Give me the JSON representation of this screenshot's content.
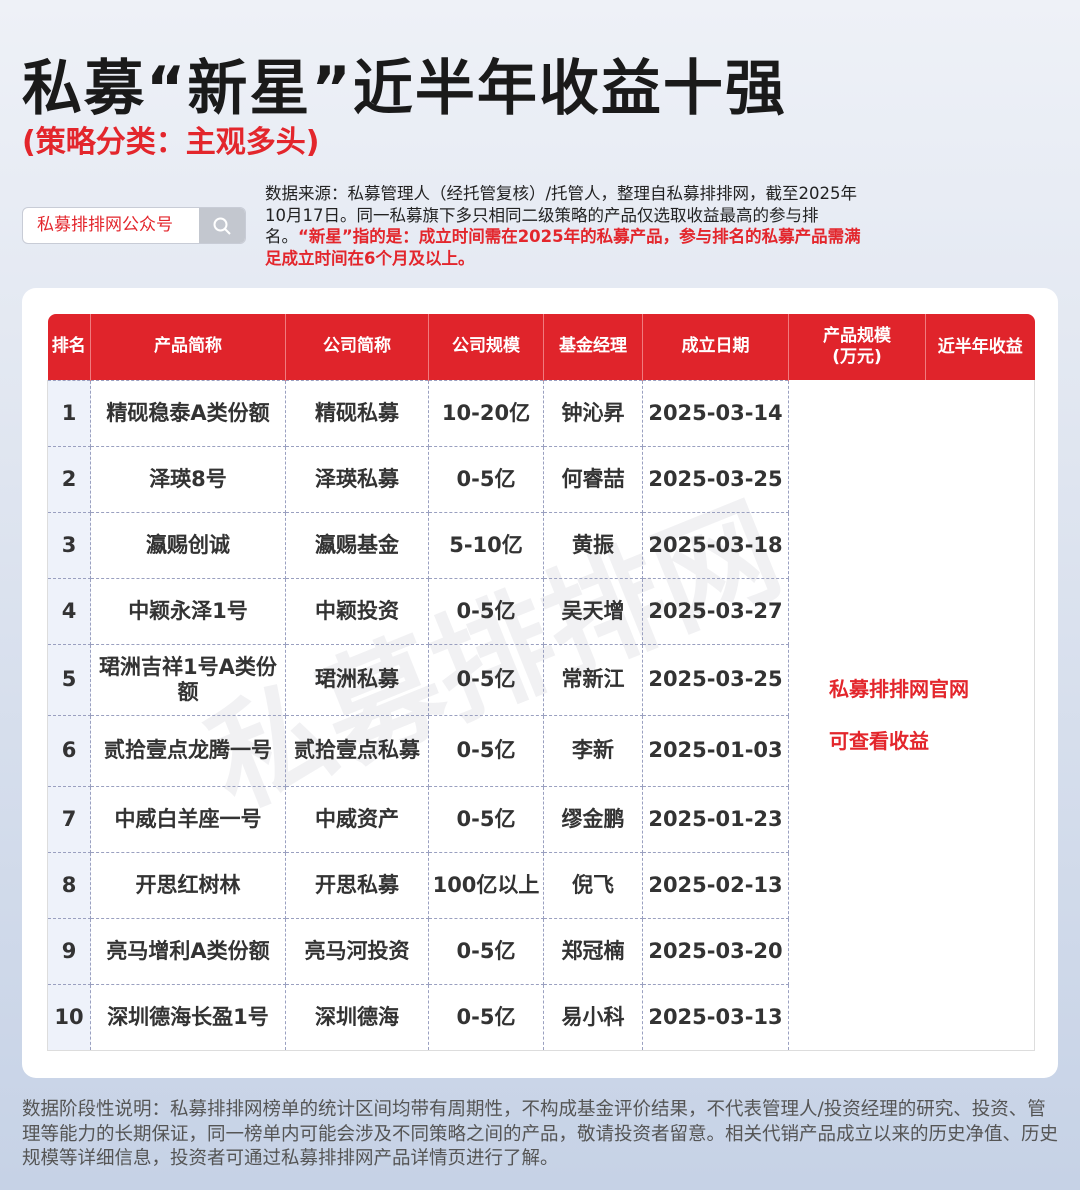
{
  "title": "私募“新星”近半年收益十强",
  "subtitle": "(策略分类：主观多头)",
  "search": {
    "label": "私募排排网公众号",
    "icon": "search-icon"
  },
  "source": {
    "normal": "数据来源：私募管理人（经托管复核）/托管人，整理自私募排排网，截至2025年10月17日。同一私募旗下多只相同二级策略的产品仅选取收益最高的参与排名。",
    "highlight": "“新星”指的是：成立时间需在2025年的私募产品，参与排名的私募产品需满足成立时间在6个月及以上。"
  },
  "table": {
    "headers": [
      "排名",
      "产品简称",
      "公司简称",
      "公司规模",
      "基金经理",
      "成立日期",
      "产品规模\n(万元)",
      "近半年收益"
    ],
    "rows": [
      [
        "1",
        "精砚稳泰A类份额",
        "精砚私募",
        "10-20亿",
        "钟沁昇",
        "2025-03-14"
      ],
      [
        "2",
        "泽瑛8号",
        "泽瑛私募",
        "0-5亿",
        "何睿喆",
        "2025-03-25"
      ],
      [
        "3",
        "瀛赐创诚",
        "瀛赐基金",
        "5-10亿",
        "黄振",
        "2025-03-18"
      ],
      [
        "4",
        "中颖永泽1号",
        "中颖投资",
        "0-5亿",
        "吴天增",
        "2025-03-27"
      ],
      [
        "5",
        "珺洲吉祥1号A类份额",
        "珺洲私募",
        "0-5亿",
        "常新江",
        "2025-03-25"
      ],
      [
        "6",
        "贰拾壹点龙腾一号",
        "贰拾壹点私募",
        "0-5亿",
        "李新",
        "2025-01-03"
      ],
      [
        "7",
        "中威白羊座一号",
        "中威资产",
        "0-5亿",
        "缪金鹏",
        "2025-01-23"
      ],
      [
        "8",
        "开思红树林",
        "开思私募",
        "100亿以上",
        "倪飞",
        "2025-02-13"
      ],
      [
        "9",
        "亮马增利A类份额",
        "亮马河投资",
        "0-5亿",
        "郑冠楠",
        "2025-03-20"
      ],
      [
        "10",
        "深圳德海长盈1号",
        "深圳德海",
        "0-5亿",
        "易小科",
        "2025-03-13"
      ]
    ],
    "merged_note": [
      "私募排排网官网",
      "可查看收益"
    ]
  },
  "watermark": "私募排排网",
  "footer": "数据阶段性说明：私募排排网榜单的统计区间均带有周期性，不构成基金评价结果，不代表管理人/投资经理的研究、投资、管理等能力的长期保证，同一榜单内可能会涉及不同策略之间的产品，敬请投资者留意。相关代销产品成立以来的历史净值、历史规模等详细信息，投资者可通过私募排排网产品详情页进行了解。",
  "colors": {
    "accent": "#e0242b",
    "background": "#dfe5f0"
  }
}
